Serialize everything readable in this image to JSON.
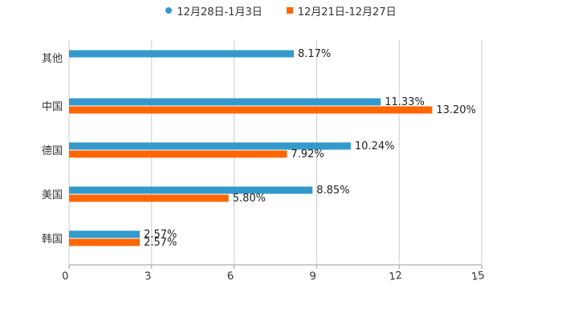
{
  "chart_data": {
    "type": "bar",
    "orientation": "horizontal",
    "title": "",
    "xlabel": "",
    "ylabel": "",
    "xlim": [
      0,
      15
    ],
    "ticks": [
      0,
      3,
      6,
      9,
      12,
      15
    ],
    "tick_labels": [
      "0",
      "3",
      "6",
      "9",
      "12",
      "15"
    ],
    "grid": true,
    "legend_position": "top-center",
    "categories": [
      "其他",
      "中国",
      "德国",
      "美国",
      "韩国"
    ],
    "series": [
      {
        "name": "12月28日-1月3日",
        "color": "#3399cc",
        "marker": "circle",
        "values": [
          8.17,
          11.33,
          10.24,
          8.85,
          2.57
        ],
        "labels": [
          "8.17%",
          "11.33%",
          "10.24%",
          "8.85%",
          "2.57%"
        ]
      },
      {
        "name": "12月21日-12月27日",
        "color": "#ff6600",
        "marker": "square",
        "values": [
          null,
          13.2,
          7.92,
          5.8,
          2.57
        ],
        "labels": [
          "",
          "13.20%",
          "7.92%",
          "5.80%",
          "2.57%"
        ]
      }
    ]
  }
}
